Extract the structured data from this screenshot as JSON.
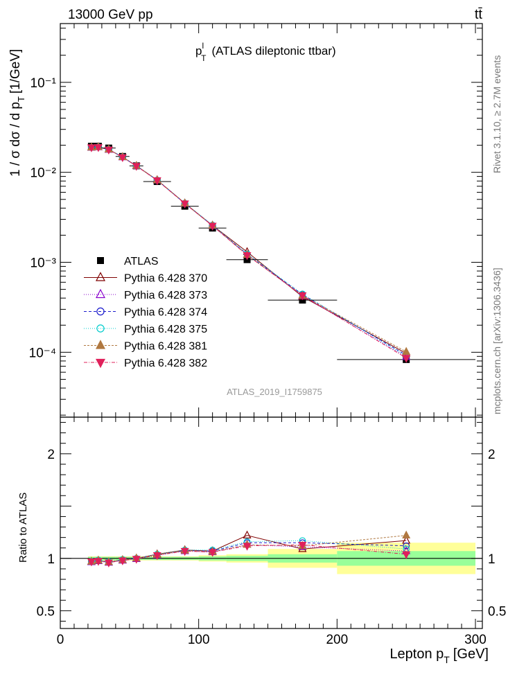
{
  "header": {
    "energy_label": "13000 GeV pp",
    "process_label": "tt̄",
    "title": "p",
    "title_sup": "l",
    "title_sub": "T",
    "title_suffix": "(ATLAS dileptonic ttbar)",
    "analysis_id": "ATLAS_2019_I1759875",
    "side_rivet": "Rivet 3.1.10, ≥ 2.7M events",
    "side_mcplots": "mcplots.cern.ch [arXiv:1306.3436]"
  },
  "chart_data": {
    "type": "scatter",
    "xlabel": "Lepton p",
    "xlabel_sub": "T",
    "xlabel_unit": "[GeV]",
    "ylabel": "1 / σ  dσ / d p",
    "ylabel_sub": "T",
    "ylabel_unit": "[1/GeV]",
    "ratio_ylabel": "Ratio to ATLAS",
    "xlim": [
      0,
      305
    ],
    "ylim": [
      1.9e-05,
      0.45
    ],
    "yscale": "log",
    "ratio_ylim": [
      0.33,
      2.35
    ],
    "x_ticks": [
      0,
      100,
      200,
      300
    ],
    "y_tick_labels": [
      "10⁻⁴",
      "10⁻³",
      "10⁻²",
      "10⁻¹"
    ],
    "ratio_y_ticks": [
      0.5,
      1,
      2
    ],
    "ratio_y_tick_labels": [
      "0.5",
      "1",
      "2"
    ],
    "legend_position": "middle-left",
    "x": [
      22.5,
      27.5,
      35,
      45,
      55,
      70,
      90,
      110,
      135,
      175,
      250
    ],
    "data": {
      "name": "ATLAS",
      "values": [
        0.0195,
        0.0195,
        0.0186,
        0.015,
        0.0118,
        0.0079,
        0.0042,
        0.0024,
        0.00107,
        0.00038,
        8.3e-05
      ],
      "bins": [
        [
          20,
          25
        ],
        [
          25,
          30
        ],
        [
          30,
          40
        ],
        [
          40,
          50
        ],
        [
          50,
          60
        ],
        [
          60,
          80
        ],
        [
          80,
          100
        ],
        [
          100,
          120
        ],
        [
          120,
          150
        ],
        [
          150,
          200
        ],
        [
          200,
          300
        ]
      ],
      "band_inner": [
        0.015,
        0.015,
        0.015,
        0.015,
        0.015,
        0.015,
        0.015,
        0.02,
        0.025,
        0.04,
        0.07
      ],
      "band_outer": [
        0.02,
        0.02,
        0.02,
        0.02,
        0.02,
        0.02,
        0.02,
        0.03,
        0.04,
        0.09,
        0.15
      ]
    },
    "series": [
      {
        "name": "Pythia 6.428 370",
        "color": "#7f0000",
        "marker": "triangle-open",
        "dash": "",
        "ratio": [
          0.97,
          0.98,
          0.965,
          0.985,
          1.0,
          1.04,
          1.08,
          1.07,
          1.22,
          1.09,
          1.17
        ]
      },
      {
        "name": "Pythia 6.428 373",
        "color": "#8800cc",
        "marker": "triangle-open",
        "dash": "1,2",
        "ratio": [
          0.965,
          0.975,
          0.96,
          0.98,
          0.995,
          1.03,
          1.07,
          1.06,
          1.13,
          1.11,
          1.07
        ]
      },
      {
        "name": "Pythia 6.428 374",
        "color": "#1a1acc",
        "marker": "circle-open",
        "dash": "4,3",
        "ratio": [
          0.97,
          0.98,
          0.965,
          0.985,
          1.0,
          1.035,
          1.075,
          1.07,
          1.15,
          1.15,
          1.12
        ]
      },
      {
        "name": "Pythia 6.428 375",
        "color": "#00cccc",
        "marker": "circle-open",
        "dash": "1,2",
        "ratio": [
          0.975,
          0.985,
          0.97,
          0.99,
          1.0,
          1.04,
          1.08,
          1.08,
          1.16,
          1.17,
          1.09
        ]
      },
      {
        "name": "Pythia 6.428 381",
        "color": "#b07840",
        "marker": "triangle-filled",
        "dash": "3,2",
        "ratio": [
          0.97,
          0.98,
          0.965,
          0.985,
          1.0,
          1.035,
          1.075,
          1.065,
          1.13,
          1.12,
          1.22
        ]
      },
      {
        "name": "Pythia 6.428 382",
        "color": "#e0205a",
        "marker": "triangle-down-filled",
        "dash": "5,2,1,2",
        "ratio": [
          0.97,
          0.975,
          0.96,
          0.98,
          0.995,
          1.03,
          1.07,
          1.06,
          1.12,
          1.13,
          1.04
        ]
      }
    ]
  }
}
